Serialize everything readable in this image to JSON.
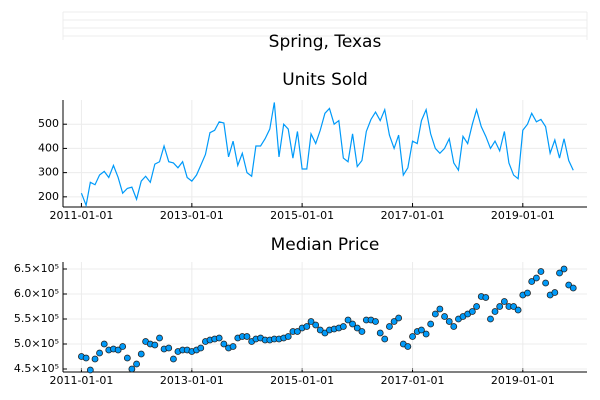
{
  "title": "Spring, Texas",
  "chart_data": [
    {
      "type": "line",
      "title": "Units Sold",
      "color": "#009af9",
      "grid": true,
      "x": [
        "2011-01-01",
        "2011-02-01",
        "2011-03-01",
        "2011-04-01",
        "2011-05-01",
        "2011-06-01",
        "2011-07-01",
        "2011-08-01",
        "2011-09-01",
        "2011-10-01",
        "2011-11-01",
        "2011-12-01",
        "2012-01-01",
        "2012-02-01",
        "2012-03-01",
        "2012-04-01",
        "2012-05-01",
        "2012-06-01",
        "2012-07-01",
        "2012-08-01",
        "2012-09-01",
        "2012-10-01",
        "2012-11-01",
        "2012-12-01",
        "2013-01-01",
        "2013-02-01",
        "2013-03-01",
        "2013-04-01",
        "2013-05-01",
        "2013-06-01",
        "2013-07-01",
        "2013-08-01",
        "2013-09-01",
        "2013-10-01",
        "2013-11-01",
        "2013-12-01",
        "2014-01-01",
        "2014-02-01",
        "2014-03-01",
        "2014-04-01",
        "2014-05-01",
        "2014-06-01",
        "2014-07-01",
        "2014-08-01",
        "2014-09-01",
        "2014-10-01",
        "2014-11-01",
        "2014-12-01",
        "2015-01-01",
        "2015-02-01",
        "2015-03-01",
        "2015-04-01",
        "2015-05-01",
        "2015-06-01",
        "2015-07-01",
        "2015-08-01",
        "2015-09-01",
        "2015-10-01",
        "2015-11-01",
        "2015-12-01",
        "2016-01-01",
        "2016-02-01",
        "2016-03-01",
        "2016-04-01",
        "2016-05-01",
        "2016-06-01",
        "2016-07-01",
        "2016-08-01",
        "2016-09-01",
        "2016-10-01",
        "2016-11-01",
        "2016-12-01",
        "2017-01-01",
        "2017-02-01",
        "2017-03-01",
        "2017-04-01",
        "2017-05-01",
        "2017-06-01",
        "2017-07-01",
        "2017-08-01",
        "2017-09-01",
        "2017-10-01",
        "2017-11-01",
        "2017-12-01",
        "2018-01-01",
        "2018-02-01",
        "2018-03-01",
        "2018-04-01",
        "2018-05-01",
        "2018-06-01",
        "2018-07-01",
        "2018-08-01",
        "2018-09-01",
        "2018-10-01",
        "2018-11-01",
        "2018-12-01",
        "2019-01-01",
        "2019-02-01",
        "2019-03-01",
        "2019-04-01",
        "2019-05-01",
        "2019-06-01",
        "2019-07-01",
        "2019-08-01",
        "2019-09-01",
        "2019-10-01",
        "2019-11-01",
        "2019-12-01"
      ],
      "values": [
        215,
        165,
        260,
        250,
        290,
        305,
        280,
        330,
        280,
        215,
        235,
        240,
        190,
        265,
        285,
        260,
        335,
        345,
        410,
        345,
        340,
        320,
        345,
        280,
        265,
        290,
        330,
        375,
        465,
        475,
        510,
        505,
        365,
        430,
        330,
        380,
        300,
        285,
        410,
        410,
        440,
        480,
        590,
        365,
        500,
        480,
        360,
        470,
        315,
        315,
        460,
        420,
        475,
        545,
        565,
        500,
        515,
        360,
        345,
        460,
        325,
        350,
        470,
        520,
        550,
        515,
        560,
        455,
        400,
        455,
        290,
        320,
        430,
        420,
        515,
        560,
        460,
        400,
        380,
        400,
        440,
        340,
        310,
        450,
        420,
        500,
        560,
        490,
        450,
        400,
        430,
        390,
        470,
        340,
        290,
        275,
        475,
        500,
        545,
        510,
        520,
        490,
        380,
        435,
        360,
        440,
        350,
        310
      ],
      "xlim": [
        "2010-09-01",
        "2020-03-01"
      ],
      "xticks": [
        "2011-01-01",
        "2013-01-01",
        "2015-01-01",
        "2017-01-01",
        "2019-01-01"
      ],
      "ylim": [
        158,
        600
      ],
      "yticks": [
        200,
        300,
        400,
        500
      ]
    },
    {
      "type": "scatter",
      "title": "Median Price",
      "color": "#009af9",
      "grid": true,
      "x": [
        "2011-01-01",
        "2011-02-01",
        "2011-03-01",
        "2011-04-01",
        "2011-05-01",
        "2011-06-01",
        "2011-07-01",
        "2011-08-01",
        "2011-09-01",
        "2011-10-01",
        "2011-11-01",
        "2011-12-01",
        "2012-01-01",
        "2012-02-01",
        "2012-03-01",
        "2012-04-01",
        "2012-05-01",
        "2012-06-01",
        "2012-07-01",
        "2012-08-01",
        "2012-09-01",
        "2012-10-01",
        "2012-11-01",
        "2012-12-01",
        "2013-01-01",
        "2013-02-01",
        "2013-03-01",
        "2013-04-01",
        "2013-05-01",
        "2013-06-01",
        "2013-07-01",
        "2013-08-01",
        "2013-09-01",
        "2013-10-01",
        "2013-11-01",
        "2013-12-01",
        "2014-01-01",
        "2014-02-01",
        "2014-03-01",
        "2014-04-01",
        "2014-05-01",
        "2014-06-01",
        "2014-07-01",
        "2014-08-01",
        "2014-09-01",
        "2014-10-01",
        "2014-11-01",
        "2014-12-01",
        "2015-01-01",
        "2015-02-01",
        "2015-03-01",
        "2015-04-01",
        "2015-05-01",
        "2015-06-01",
        "2015-07-01",
        "2015-08-01",
        "2015-09-01",
        "2015-10-01",
        "2015-11-01",
        "2015-12-01",
        "2016-01-01",
        "2016-02-01",
        "2016-03-01",
        "2016-04-01",
        "2016-05-01",
        "2016-06-01",
        "2016-07-01",
        "2016-08-01",
        "2016-09-01",
        "2016-10-01",
        "2016-11-01",
        "2016-12-01",
        "2017-01-01",
        "2017-02-01",
        "2017-03-01",
        "2017-04-01",
        "2017-05-01",
        "2017-06-01",
        "2017-07-01",
        "2017-08-01",
        "2017-09-01",
        "2017-10-01",
        "2017-11-01",
        "2017-12-01",
        "2018-01-01",
        "2018-02-01",
        "2018-03-01",
        "2018-04-01",
        "2018-05-01",
        "2018-06-01",
        "2018-07-01",
        "2018-08-01",
        "2018-09-01",
        "2018-10-01",
        "2018-11-01",
        "2018-12-01",
        "2019-01-01",
        "2019-02-01",
        "2019-03-01",
        "2019-04-01",
        "2019-05-01",
        "2019-06-01",
        "2019-07-01",
        "2019-08-01",
        "2019-09-01",
        "2019-10-01",
        "2019-11-01",
        "2019-12-01"
      ],
      "values": [
        475000,
        472000,
        448000,
        470000,
        482000,
        500000,
        488000,
        490000,
        488000,
        495000,
        472000,
        450000,
        460000,
        480000,
        505000,
        500000,
        498000,
        512000,
        490000,
        492000,
        470000,
        485000,
        488000,
        488000,
        485000,
        488000,
        492000,
        505000,
        508000,
        510000,
        512000,
        500000,
        492000,
        495000,
        512000,
        515000,
        515000,
        505000,
        510000,
        512000,
        508000,
        508000,
        510000,
        510000,
        512000,
        515000,
        525000,
        525000,
        532000,
        535000,
        545000,
        538000,
        528000,
        522000,
        528000,
        530000,
        532000,
        535000,
        548000,
        540000,
        532000,
        525000,
        548000,
        548000,
        545000,
        522000,
        510000,
        535000,
        545000,
        552000,
        500000,
        495000,
        515000,
        525000,
        528000,
        520000,
        540000,
        560000,
        570000,
        555000,
        545000,
        535000,
        550000,
        555000,
        560000,
        565000,
        575000,
        595000,
        593000,
        550000,
        565000,
        575000,
        585000,
        575000,
        575000,
        568000,
        598000,
        602000,
        625000,
        632000,
        645000,
        622000,
        598000,
        603000,
        642000,
        650000,
        618000,
        612000
      ],
      "xlim": [
        "2010-09-01",
        "2020-03-01"
      ],
      "xticks": [
        "2011-01-01",
        "2013-01-01",
        "2015-01-01",
        "2017-01-01",
        "2019-01-01"
      ],
      "ylim": [
        444000,
        664000
      ],
      "yticks": [
        {
          "value": 450000,
          "label": "4.5×10⁵"
        },
        {
          "value": 500000,
          "label": "5.0×10⁵"
        },
        {
          "value": 550000,
          "label": "5.5×10⁵"
        },
        {
          "value": 600000,
          "label": "6.0×10⁵"
        },
        {
          "value": 650000,
          "label": "6.5×10⁵"
        }
      ]
    }
  ]
}
